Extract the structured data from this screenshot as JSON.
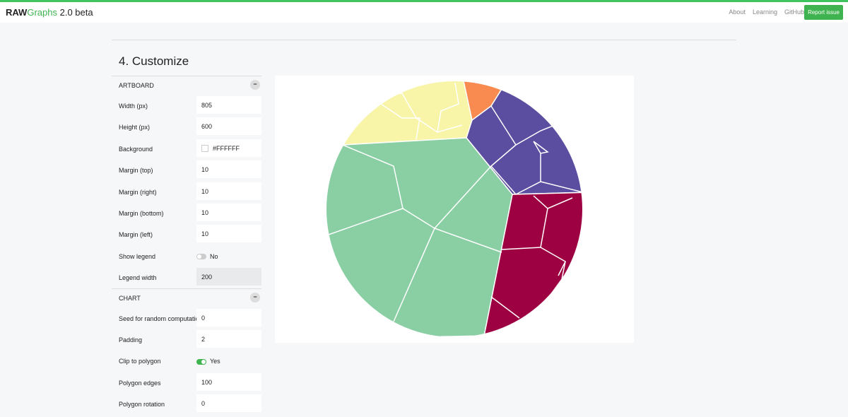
{
  "navbar": {
    "brand_bold": "RAW",
    "brand_colored": "Graphs",
    "version": "2.0 beta",
    "links": [
      "About",
      "Learning",
      "GitHub"
    ],
    "button": "Report issue"
  },
  "section": {
    "title": "4. Customize"
  },
  "panels": [
    {
      "title": "ARTBOARD",
      "rows": [
        {
          "label": "Width (px)",
          "value": 805
        },
        {
          "label": "Height (px)",
          "value": 600
        },
        {
          "label": "Background",
          "color": "#FFFFFF"
        },
        {
          "label": "Margin (top)",
          "value": 10
        },
        {
          "label": "Margin (right)",
          "value": 10
        },
        {
          "label": "Margin (bottom)",
          "value": 10
        },
        {
          "label": "Margin (left)",
          "value": 10
        },
        {
          "label": "Show legend",
          "toggle": "No",
          "checked": false
        },
        {
          "label": "Legend width",
          "value": 200,
          "disabled": true
        }
      ]
    },
    {
      "title": "CHART",
      "rows": [
        {
          "label": "Seed for random computation",
          "value": 0
        },
        {
          "label": "Padding",
          "value": 2
        },
        {
          "label": "Clip to polygon",
          "toggle": "Yes",
          "checked": true
        },
        {
          "label": "Polygon edges",
          "value": 100
        },
        {
          "label": "Polygon rotation",
          "value": 0
        }
      ]
    }
  ]
}
